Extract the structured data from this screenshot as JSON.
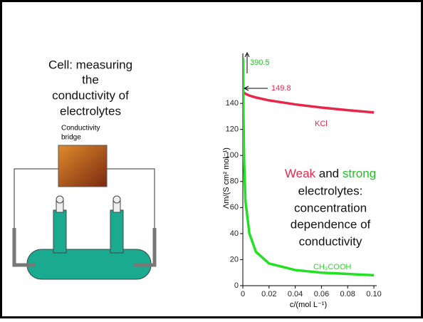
{
  "slide": {
    "left_title": [
      "Cell: measuring",
      "the",
      "conductivity of",
      "electrolytes"
    ],
    "apparatus_label": [
      "Conductivity",
      "bridge"
    ],
    "right_text": {
      "line1": [
        "Weak",
        " and ",
        "strong"
      ],
      "lines": [
        "electrolytes:",
        "concentration",
        "dependence of",
        "conductivity"
      ]
    }
  },
  "chart_data": {
    "type": "line",
    "x": [
      0,
      0.0002,
      0.0005,
      0.001,
      0.002,
      0.005,
      0.01,
      0.02,
      0.04,
      0.06,
      0.08,
      0.1
    ],
    "series": [
      {
        "name": "KCl",
        "color": "#e8264a",
        "values": [
          149.8,
          149.1,
          148.6,
          148.1,
          147.4,
          146.0,
          144.5,
          142.3,
          139.2,
          136.8,
          134.8,
          133.0
        ]
      },
      {
        "name": "CH₃COOH",
        "color": "#22e022",
        "values": [
          null,
          175,
          130,
          95,
          65,
          40,
          26,
          17,
          12,
          10,
          9,
          8
        ]
      }
    ],
    "xlabel": "c/(mol L⁻¹)",
    "ylabel": "Λm/(S cm² mol⁻¹)",
    "xlim": [
      0,
      0.1
    ],
    "xticks": [
      0,
      0.02,
      0.04,
      0.06,
      0.08,
      {
        "value": 0.1,
        "label": "0.10"
      }
    ],
    "ylim": [
      0,
      180
    ],
    "yticks": [
      0,
      20,
      40,
      60,
      80,
      100,
      120,
      140
    ],
    "annotations": [
      "390.5",
      "149.8"
    ]
  }
}
